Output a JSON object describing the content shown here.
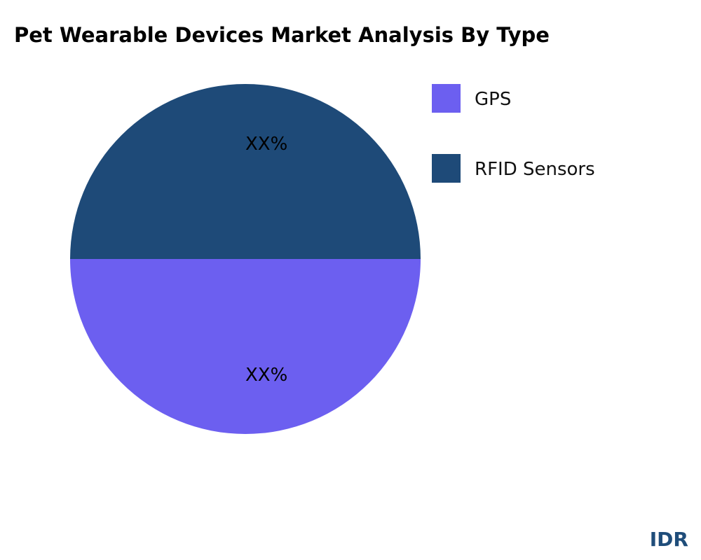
{
  "chart_data": {
    "type": "pie",
    "title": "Pet Wearable Devices Market Analysis By Type",
    "slices": [
      {
        "name": "GPS",
        "value": 50,
        "label": "XX%",
        "color": "#6c5ff0"
      },
      {
        "name": "RFID Sensors",
        "value": 50,
        "label": "XX%",
        "color": "#1e4a78"
      }
    ],
    "legend_position": "right"
  },
  "brand": "IDR"
}
